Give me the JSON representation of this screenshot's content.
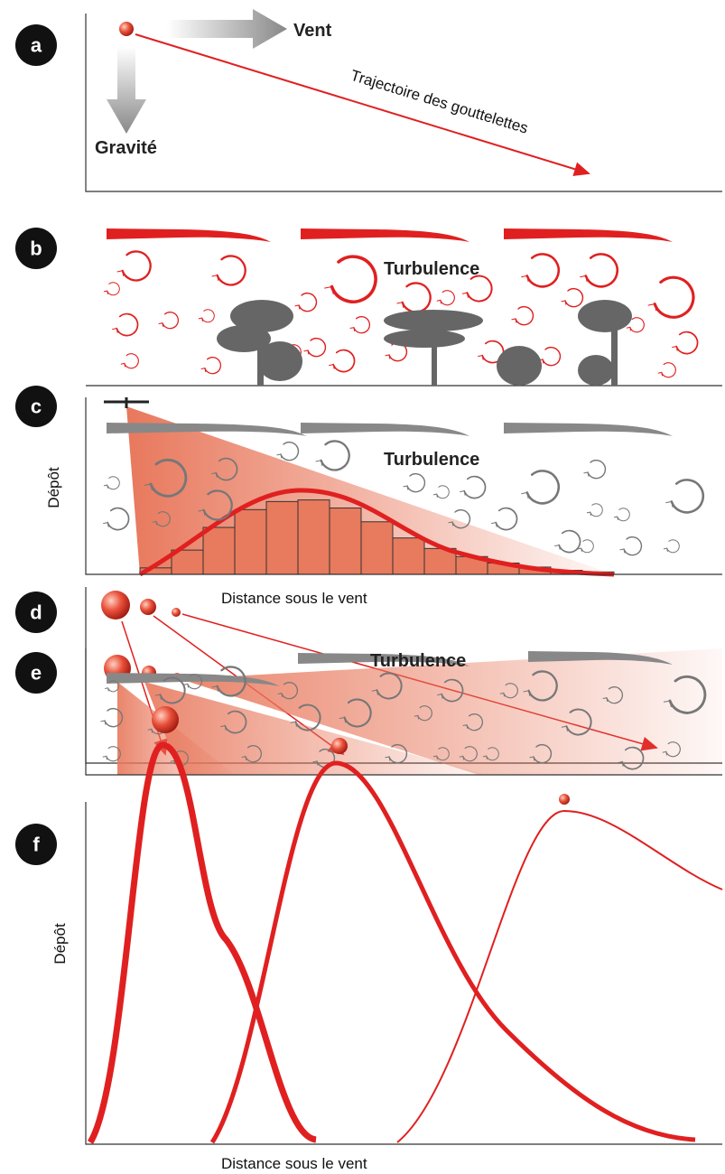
{
  "panels": {
    "a": {
      "label": "a",
      "wind": "Vent",
      "gravity": "Gravité",
      "trajectory": "Trajectoire des gouttelettes"
    },
    "b": {
      "label": "b",
      "turbulence": "Turbulence"
    },
    "c": {
      "label": "c",
      "turbulence": "Turbulence",
      "y_axis": "Dépôt",
      "x_axis": "Distance sous le vent"
    },
    "d": {
      "label": "d"
    },
    "e": {
      "label": "e",
      "turbulence": "Turbulence"
    },
    "f": {
      "label": "f",
      "y_axis": "Dépôt",
      "x_axis": "Distance sous le vent"
    }
  }
}
